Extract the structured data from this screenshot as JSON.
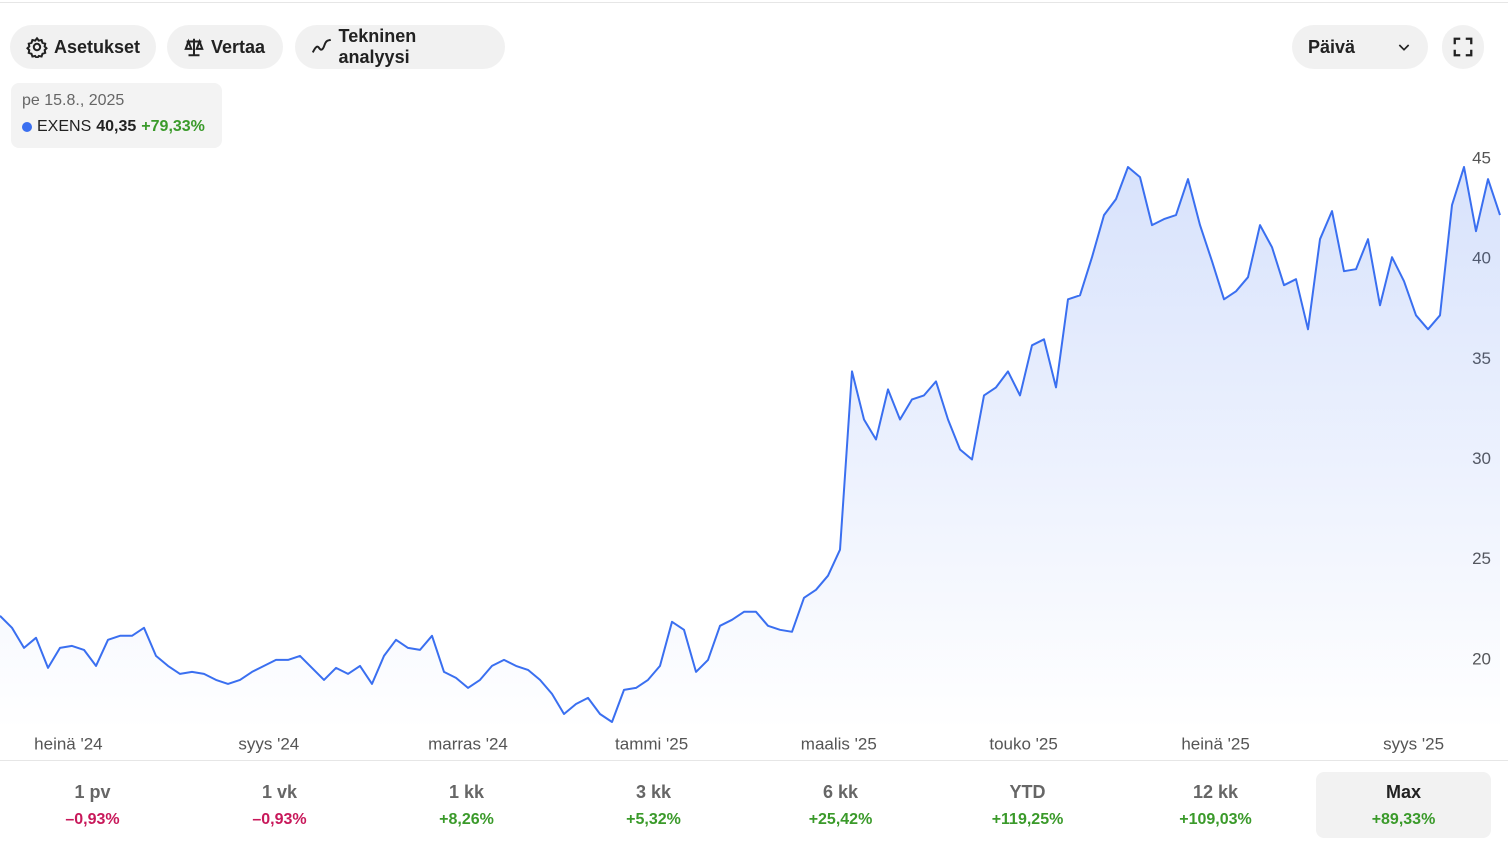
{
  "toolbar": {
    "settings": "Asetukset",
    "compare": "Vertaa",
    "technical": "Tekninen analyysi",
    "interval": "Päivä"
  },
  "tooltip": {
    "date": "pe 15.8., 2025",
    "price": "40,35",
    "change": "+79,33%"
  },
  "chart_data": {
    "type": "line",
    "series": [
      {
        "name": "EXENS",
        "color": "#3a6ff0",
        "values": [
          22.2,
          21.6,
          20.6,
          21.1,
          19.6,
          20.6,
          20.7,
          20.5,
          19.7,
          21.0,
          21.2,
          21.2,
          21.6,
          20.2,
          19.7,
          19.3,
          19.4,
          19.3,
          19.0,
          18.8,
          19.0,
          19.4,
          19.7,
          20.0,
          20.0,
          20.2,
          19.6,
          19.0,
          19.6,
          19.3,
          19.7,
          18.8,
          20.2,
          21.0,
          20.6,
          20.5,
          21.2,
          19.4,
          19.1,
          18.6,
          19.0,
          19.7,
          20.0,
          19.7,
          19.5,
          19.0,
          18.3,
          17.3,
          17.8,
          18.1,
          17.3,
          16.9,
          18.5,
          18.6,
          19.0,
          19.7,
          21.9,
          21.5,
          19.4,
          20.0,
          21.7,
          22.0,
          22.4,
          22.4,
          21.7,
          21.5,
          21.4,
          23.1,
          23.5,
          24.2,
          25.5,
          34.4,
          32.0,
          31.0,
          33.5,
          32.0,
          33.0,
          33.2,
          33.9,
          32.0,
          30.5,
          30.0,
          33.2,
          33.6,
          34.4,
          33.2,
          35.7,
          36.0,
          33.6,
          38.0,
          38.2,
          40.1,
          42.2,
          43.0,
          44.6,
          44.1,
          41.7,
          42.0,
          42.2,
          44.0,
          41.7,
          39.9,
          38.0,
          38.4,
          39.1,
          41.7,
          40.6,
          38.7,
          39.0,
          36.5,
          41.0,
          42.4,
          39.4,
          39.5,
          41.0,
          37.7,
          40.1,
          38.9,
          37.2,
          36.5,
          37.2,
          42.7,
          44.6,
          41.4,
          44.0,
          42.2
        ]
      }
    ],
    "xlim": [
      0,
      125
    ],
    "xticks": [
      {
        "value": 5.7,
        "label": "heinä '24"
      },
      {
        "value": 22.4,
        "label": "syys '24"
      },
      {
        "value": 39,
        "label": "marras '24"
      },
      {
        "value": 54.3,
        "label": "tammi '25"
      },
      {
        "value": 69.9,
        "label": "maalis '25"
      },
      {
        "value": 85.3,
        "label": "touko '25"
      },
      {
        "value": 101.3,
        "label": "heinä '25"
      },
      {
        "value": 117.8,
        "label": "syys '25"
      }
    ],
    "ylim": [
      16.5,
      46
    ],
    "yticks": [
      20,
      25,
      30,
      35,
      40,
      45
    ],
    "grid": false
  },
  "ranges": [
    {
      "label": "1 pv",
      "change": "–0,93%"
    },
    {
      "label": "1 vk",
      "change": "–0,93%"
    },
    {
      "label": "1 kk",
      "change": "+8,26%"
    },
    {
      "label": "3 kk",
      "change": "+5,32%"
    },
    {
      "label": "6 kk",
      "change": "+25,42%"
    },
    {
      "label": "YTD",
      "change": "+119,25%"
    },
    {
      "label": "12 kk",
      "change": "+109,03%"
    },
    {
      "label": "Max",
      "change": "+89,33%"
    }
  ]
}
